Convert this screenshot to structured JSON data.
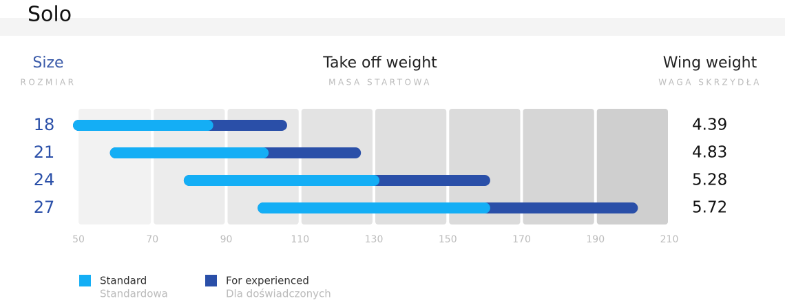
{
  "chart_data": {
    "type": "range_bar",
    "title": "Solo",
    "columns": [
      {
        "title": "Size",
        "subtitle": "ROZMIAR"
      },
      {
        "title": "Take off weight",
        "subtitle": "MASA STARTOWA"
      },
      {
        "title": "Wing weight",
        "subtitle": "WAGA SKRZYDŁA"
      }
    ],
    "categories": [
      "18",
      "21",
      "24",
      "27"
    ],
    "wing_weight": [
      4.39,
      4.83,
      5.28,
      5.72
    ],
    "series": [
      {
        "name": "Standard",
        "subtitle": "Standardowa",
        "color": "#14aef5",
        "values": [
          [
            50,
            85
          ],
          [
            60,
            100
          ],
          [
            80,
            130
          ],
          [
            100,
            160
          ]
        ]
      },
      {
        "name": "For experienced",
        "subtitle": "Dla doświadczonych",
        "color": "#2a4fa8",
        "values": [
          [
            50,
            105
          ],
          [
            60,
            125
          ],
          [
            80,
            160
          ],
          [
            100,
            200
          ]
        ]
      }
    ],
    "xlim": [
      50,
      210
    ],
    "xticks": [
      50,
      70,
      90,
      110,
      130,
      150,
      170,
      190,
      210
    ]
  }
}
